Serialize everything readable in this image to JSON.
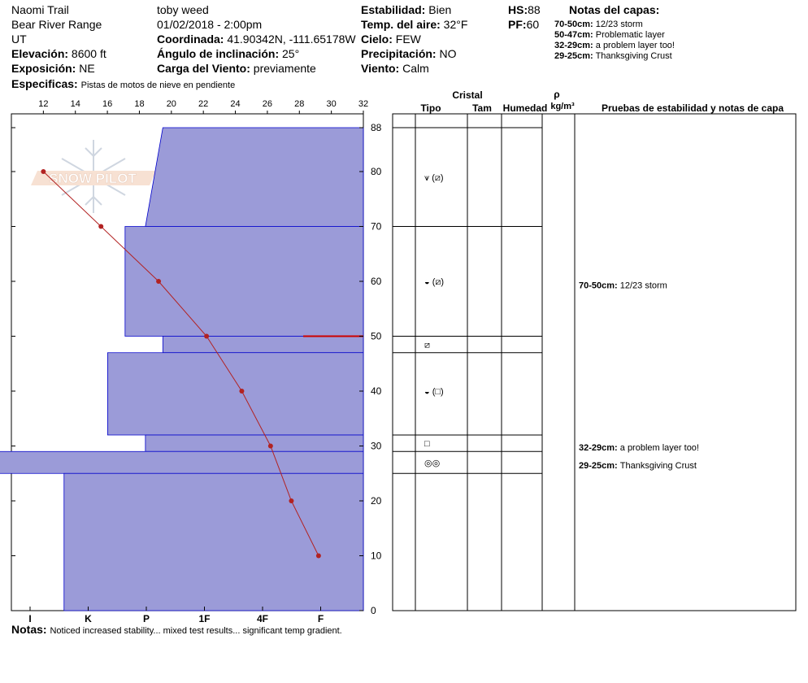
{
  "header": {
    "location": "Naomi Trail",
    "range": "Bear River Range",
    "state": "UT",
    "elevation_label": "Elevación:",
    "elevation": "8600 ft",
    "exposure_label": "Exposición:",
    "exposure": "NE",
    "specifics_label": "Especificas:",
    "specifics": "Pistas de motos de nieve en pendiente",
    "observer": "toby weed",
    "datetime": "01/02/2018 - 2:00pm",
    "coord_label": "Coordinada:",
    "coord": "41.90342N, -111.65178W",
    "slope_label": "Ángulo de inclinación:",
    "slope": "25°",
    "wind_load_label": "Carga del Viento:",
    "wind_load": "previamente",
    "stability_label": "Estabilidad:",
    "stability": "Bien",
    "air_temp_label": "Temp. del aire:",
    "air_temp": "32°F",
    "sky_label": "Cielo:",
    "sky": "FEW",
    "precip_label": "Precipitación:",
    "precip": "NO",
    "wind_label": "Viento:",
    "wind": "Calm",
    "hs_label": "HS:",
    "hs": "88",
    "pf_label": "PF:",
    "pf": "60",
    "layer_notes_title": "Notas del capas:",
    "layer_notes": [
      {
        "range": "70-50cm:",
        "text": "12/23 storm"
      },
      {
        "range": "50-47cm:",
        "text": "Problematic layer"
      },
      {
        "range": "32-29cm:",
        "text": "a problem layer too!"
      },
      {
        "range": "29-25cm:",
        "text": "Thanksgiving Crust"
      }
    ]
  },
  "logo_text": "SNOW PILOT",
  "footer": {
    "notes_label": "Notas:",
    "notes": "Noticed increased stability... mixed test results... significant temp gradient."
  },
  "columns": {
    "crystal": "Cristal",
    "type": "Tipo",
    "size": "Tam",
    "moisture": "Humedad",
    "rho": "ρ",
    "density_unit": "kg/m³",
    "tests": "Pruebas de estabilidad y notas de capa"
  },
  "chart_data": {
    "type": "area",
    "temperature_axis": {
      "label": "",
      "range": [
        10,
        32
      ],
      "ticks": [
        12,
        14,
        16,
        18,
        20,
        22,
        24,
        26,
        28,
        30,
        32
      ],
      "position": "top"
    },
    "depth_axis": {
      "range": [
        0,
        88
      ],
      "ticks": [
        0,
        10,
        20,
        30,
        40,
        50,
        60,
        70,
        80,
        88
      ],
      "position": "right"
    },
    "hardness_axis": {
      "ticks": [
        "I",
        "K",
        "P",
        "1F",
        "4F",
        "F"
      ],
      "position": "bottom"
    },
    "temperature_profile": [
      {
        "depth": 80,
        "temp": 12.0
      },
      {
        "depth": 70,
        "temp": 15.6
      },
      {
        "depth": 60,
        "temp": 19.2
      },
      {
        "depth": 50,
        "temp": 22.2
      },
      {
        "depth": 40,
        "temp": 24.4
      },
      {
        "depth": 30,
        "temp": 26.2
      },
      {
        "depth": 20,
        "temp": 27.5
      },
      {
        "depth": 10,
        "temp": 29.2
      }
    ],
    "hardness_profile": [
      {
        "top": 88,
        "bottom": 70,
        "hardness_top": 3.45,
        "hardness_bottom": 3.75
      },
      {
        "top": 70,
        "bottom": 50,
        "hardness_top": 4.1,
        "hardness_bottom": 4.1
      },
      {
        "top": 50,
        "bottom": 47,
        "hardness_top": 3.45,
        "hardness_bottom": 3.45
      },
      {
        "top": 47,
        "bottom": 32,
        "hardness_top": 4.4,
        "hardness_bottom": 4.4
      },
      {
        "top": 32,
        "bottom": 29,
        "hardness_top": 3.75,
        "hardness_bottom": 3.75
      },
      {
        "top": 29,
        "bottom": 25,
        "hardness_top": 6.6,
        "hardness_bottom": 6.6
      },
      {
        "top": 25,
        "bottom": 0,
        "hardness_top": 5.15,
        "hardness_bottom": 5.15
      }
    ],
    "layer_boundaries": [
      88,
      70,
      50,
      47,
      32,
      29,
      25
    ],
    "grain_symbols": [
      {
        "depth": 79,
        "symbols": "⩛ (⧄)"
      },
      {
        "depth": 60,
        "symbols": "◒ (⧄)"
      },
      {
        "depth": 48.5,
        "symbols": "⧄"
      },
      {
        "depth": 40,
        "symbols": "◒ (□)"
      },
      {
        "depth": 30.5,
        "symbols": "□"
      },
      {
        "depth": 27,
        "symbols": "◎◎"
      }
    ],
    "layer_annotations": [
      {
        "depth": 59.3,
        "range": "70-50cm:",
        "text": "12/23 storm"
      },
      {
        "depth": 29.8,
        "range": "32-29cm:",
        "text": "a problem layer too!"
      },
      {
        "depth": 26.5,
        "range": "29-25cm:",
        "text": "Thanksgiving Crust"
      }
    ],
    "colors": {
      "hardness_fill": "#9b9bd8",
      "hardness_stroke": "#0000cc",
      "temp_line": "#b22222",
      "problem_line": "#cc0000"
    }
  }
}
